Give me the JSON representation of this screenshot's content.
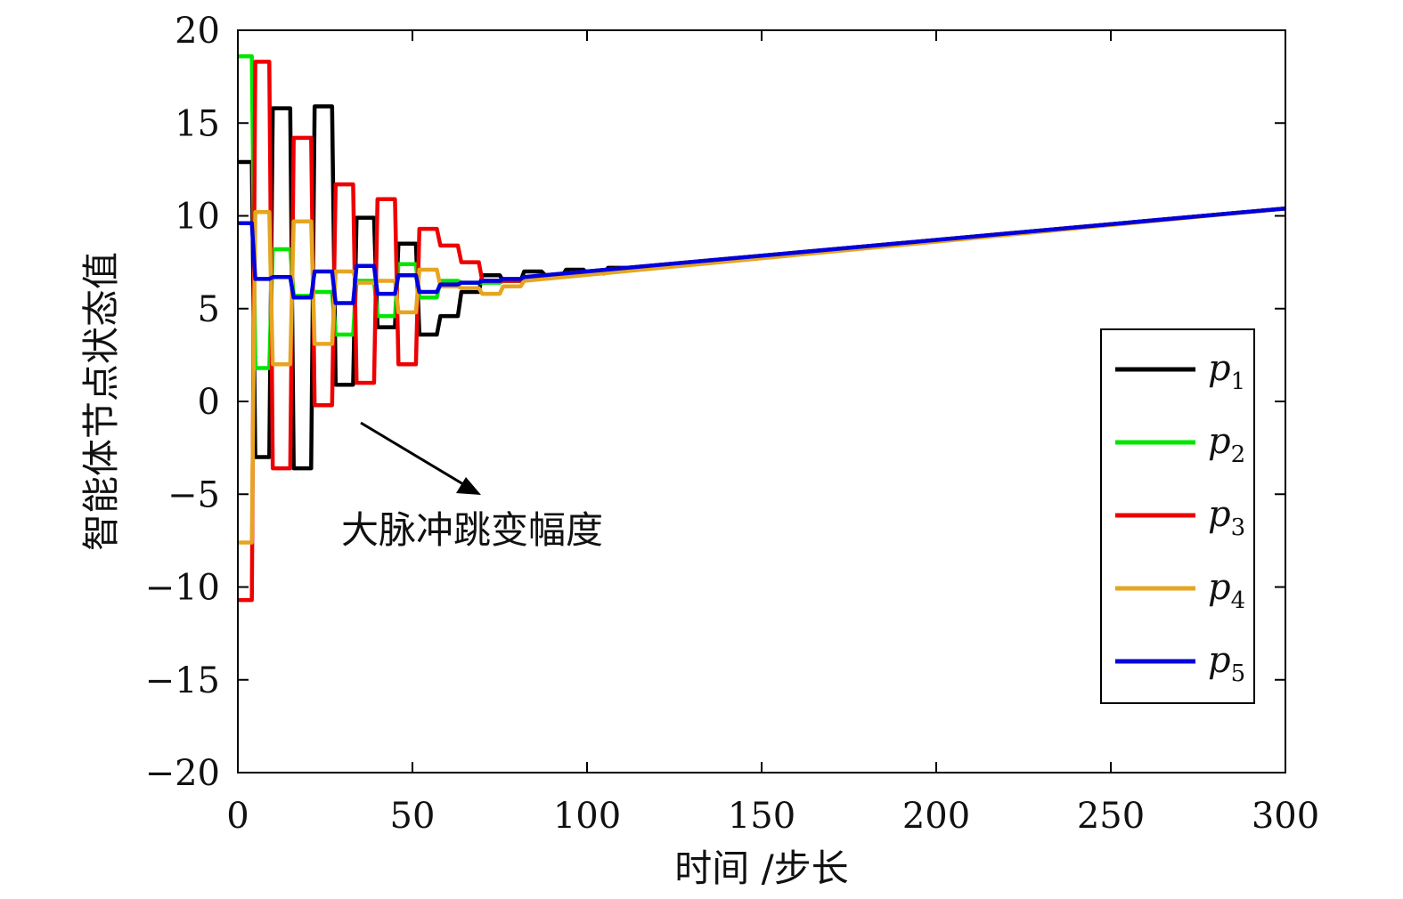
{
  "chart_data": {
    "type": "line",
    "title": "",
    "xlabel": "时间 /步长",
    "ylabel": "智能体节点状态值",
    "xlim": [
      0,
      300
    ],
    "ylim": [
      -20,
      20
    ],
    "xticks": [
      "0",
      "50",
      "100",
      "150",
      "200",
      "250",
      "300"
    ],
    "yticks": [
      "20",
      "15",
      "10",
      "5",
      "0",
      "−5",
      "−10",
      "−15",
      "−20"
    ],
    "grid": false,
    "legend_position": "right",
    "annotation": "大脉冲跳变幅度",
    "series": [
      {
        "name": "p",
        "subscript": "1",
        "color": "#000000",
        "x": [
          0,
          4,
          5,
          9,
          10,
          15,
          16,
          21,
          22,
          27,
          28,
          33,
          34,
          39,
          40,
          45,
          46,
          51,
          52,
          57,
          58,
          63,
          64,
          69,
          70,
          75,
          76,
          81,
          82,
          87,
          88,
          93,
          94,
          99,
          100,
          105,
          106,
          111,
          112,
          117,
          118,
          300
        ],
        "y": [
          12.9,
          12.9,
          -3.0,
          -3.0,
          15.8,
          15.8,
          -3.6,
          -3.6,
          15.9,
          15.9,
          0.9,
          0.9,
          9.9,
          9.9,
          4.0,
          4.0,
          8.5,
          8.5,
          3.6,
          3.6,
          4.6,
          4.6,
          5.9,
          5.9,
          6.8,
          6.8,
          6.5,
          6.5,
          7.0,
          7.0,
          6.8,
          6.8,
          7.1,
          7.1,
          6.9,
          6.9,
          7.2,
          7.2,
          7.2,
          7.2,
          7.3,
          10.4
        ]
      },
      {
        "name": "p",
        "subscript": "2",
        "color": "#00e600",
        "x": [
          0,
          4,
          5,
          9,
          10,
          15,
          16,
          21,
          22,
          27,
          28,
          33,
          34,
          39,
          40,
          45,
          46,
          51,
          52,
          57,
          58,
          63,
          64,
          69,
          70,
          75,
          76,
          81,
          82,
          87,
          88,
          300
        ],
        "y": [
          18.6,
          18.6,
          1.8,
          1.8,
          8.2,
          8.2,
          5.7,
          5.7,
          5.9,
          5.9,
          3.6,
          3.6,
          6.5,
          6.5,
          4.6,
          4.6,
          7.4,
          7.4,
          5.6,
          5.6,
          6.5,
          6.5,
          6.4,
          6.4,
          6.4,
          6.4,
          6.5,
          6.5,
          6.7,
          6.7,
          6.8,
          10.4
        ]
      },
      {
        "name": "p",
        "subscript": "3",
        "color": "#ee0000",
        "x": [
          0,
          4,
          5,
          9,
          10,
          15,
          16,
          21,
          22,
          27,
          28,
          33,
          34,
          39,
          40,
          45,
          46,
          51,
          52,
          57,
          58,
          63,
          64,
          69,
          70,
          75,
          76,
          81,
          82,
          87,
          88,
          300
        ],
        "y": [
          -10.7,
          -10.7,
          18.3,
          18.3,
          -3.6,
          -3.6,
          14.2,
          14.2,
          -0.2,
          -0.2,
          11.7,
          11.7,
          1.0,
          1.0,
          10.9,
          10.9,
          2.0,
          2.0,
          9.3,
          9.3,
          8.4,
          8.4,
          7.5,
          7.5,
          6.5,
          6.5,
          6.5,
          6.5,
          6.7,
          6.7,
          6.8,
          10.4
        ]
      },
      {
        "name": "p",
        "subscript": "4",
        "color": "#e6a521",
        "x": [
          0,
          4,
          5,
          9,
          10,
          15,
          16,
          21,
          22,
          27,
          28,
          33,
          34,
          39,
          40,
          45,
          46,
          51,
          52,
          57,
          58,
          63,
          64,
          69,
          70,
          75,
          76,
          81,
          82,
          300
        ],
        "y": [
          -7.6,
          -7.6,
          10.2,
          10.2,
          2.0,
          2.0,
          9.7,
          9.7,
          3.1,
          3.1,
          7.0,
          7.0,
          6.4,
          6.4,
          6.5,
          6.5,
          4.8,
          4.8,
          7.1,
          7.1,
          6.2,
          6.2,
          6.1,
          6.1,
          5.8,
          5.8,
          6.2,
          6.2,
          6.5,
          10.4
        ]
      },
      {
        "name": "p",
        "subscript": "5",
        "color": "#0000dd",
        "x": [
          0,
          4,
          5,
          9,
          10,
          15,
          16,
          21,
          22,
          27,
          28,
          33,
          34,
          39,
          40,
          45,
          46,
          51,
          52,
          57,
          58,
          63,
          64,
          69,
          70,
          75,
          76,
          81,
          82,
          300
        ],
        "y": [
          9.6,
          9.6,
          6.6,
          6.6,
          6.7,
          6.7,
          5.6,
          5.6,
          7.0,
          7.0,
          5.3,
          5.3,
          7.3,
          7.3,
          5.8,
          5.8,
          6.8,
          6.8,
          5.9,
          5.9,
          6.3,
          6.3,
          6.4,
          6.4,
          6.5,
          6.5,
          6.6,
          6.6,
          6.7,
          10.4
        ]
      }
    ]
  }
}
